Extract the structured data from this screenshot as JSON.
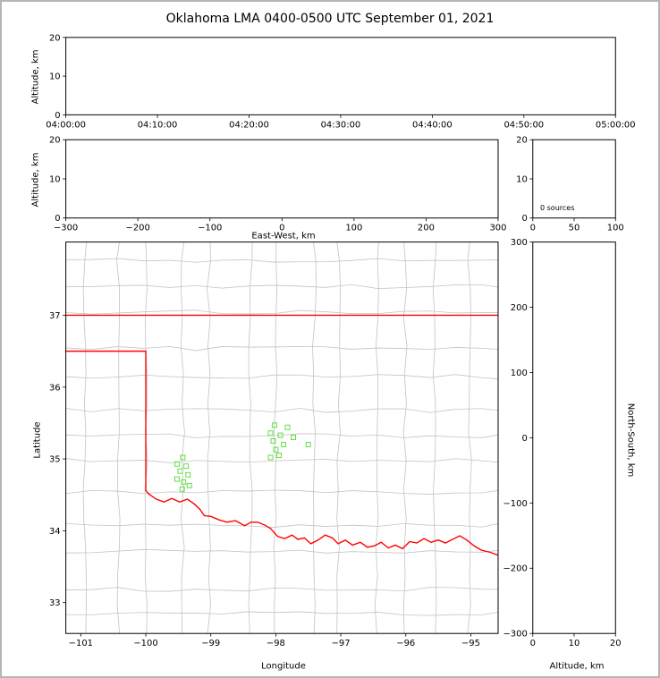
{
  "title": "Oklahoma LMA 0400-0500 UTC September 01, 2021",
  "colors": {
    "state_boundary": "#ff0000",
    "county_line": "#c3c3c3",
    "source_marker": "#62dd46",
    "axis": "#000000",
    "frame": "#b5b5b5",
    "background": "#ffffff"
  },
  "chart_data": [
    {
      "id": "time_height",
      "type": "scatter",
      "ylabel": "Altitude, km",
      "xlim": [
        0,
        3600
      ],
      "xtick_vals": [
        0,
        600,
        1200,
        1800,
        2400,
        3000,
        3600
      ],
      "xtick_labels": [
        "04:00:00",
        "04:10:00",
        "04:20:00",
        "04:30:00",
        "04:40:00",
        "04:50:00",
        "05:00:00"
      ],
      "ylim": [
        0,
        20
      ],
      "ytick_vals": [
        0,
        10,
        20
      ],
      "ytick_labels": [
        "0",
        "10",
        "20"
      ],
      "points": []
    },
    {
      "id": "ew_height",
      "type": "scatter",
      "xlabel": "East-West, km",
      "ylabel": "Altitude, km",
      "xlim": [
        -300,
        300
      ],
      "xtick_vals": [
        -300,
        -200,
        -100,
        0,
        100,
        200,
        300
      ],
      "xtick_labels": [
        "−300",
        "−200",
        "−100",
        "0",
        "100",
        "200",
        "300"
      ],
      "ylim": [
        0,
        20
      ],
      "ytick_vals": [
        0,
        10,
        20
      ],
      "ytick_labels": [
        "0",
        "10",
        "20"
      ],
      "points": []
    },
    {
      "id": "alt_histogram",
      "type": "histogram",
      "annotation": "0 sources",
      "xlim": [
        0,
        100
      ],
      "xtick_vals": [
        0,
        50,
        100
      ],
      "xtick_labels": [
        "0",
        "50",
        "100"
      ],
      "ylim": [
        0,
        20
      ],
      "ytick_vals": [
        0,
        10,
        20
      ],
      "ytick_labels": [
        "0",
        "10",
        "20"
      ],
      "points": []
    },
    {
      "id": "plan_map",
      "type": "scatter",
      "xlabel": "Longitude",
      "ylabel": "Latitude",
      "xlim": [
        -101.23,
        -94.58
      ],
      "xtick_vals": [
        -101,
        -100,
        -99,
        -98,
        -97,
        -96,
        -95
      ],
      "xtick_labels": [
        "−101",
        "−100",
        "−99",
        "−98",
        "−97",
        "−96",
        "−95"
      ],
      "ylim": [
        32.57,
        38.02
      ],
      "ytick_vals": [
        33,
        34,
        35,
        36,
        37
      ],
      "ytick_labels": [
        "33",
        "34",
        "35",
        "36",
        "37"
      ],
      "series": [
        {
          "name": "lma_sources",
          "marker": "open-square",
          "color": "#62dd46",
          "points": [
            [
              -99.43,
              35.02
            ],
            [
              -99.52,
              34.93
            ],
            [
              -99.38,
              34.9
            ],
            [
              -99.47,
              34.83
            ],
            [
              -99.35,
              34.78
            ],
            [
              -99.52,
              34.72
            ],
            [
              -99.42,
              34.68
            ],
            [
              -99.33,
              34.63
            ],
            [
              -99.44,
              34.58
            ],
            [
              -98.02,
              35.47
            ],
            [
              -97.82,
              35.44
            ],
            [
              -98.08,
              35.36
            ],
            [
              -97.93,
              35.33
            ],
            [
              -97.73,
              35.3
            ],
            [
              -98.04,
              35.25
            ],
            [
              -97.88,
              35.2
            ],
            [
              -98.0,
              35.13
            ],
            [
              -97.5,
              35.2
            ],
            [
              -97.95,
              35.05
            ],
            [
              -98.08,
              35.02
            ]
          ]
        }
      ],
      "state_boundary": {
        "color": "#ff0000",
        "lines": [
          [
            [
              -101.23,
              37.0
            ],
            [
              -94.58,
              37.0
            ]
          ],
          [
            [
              -101.23,
              36.5
            ],
            [
              -100.0,
              36.5
            ],
            [
              -100.0,
              34.56
            ],
            [
              -99.95,
              34.51
            ],
            [
              -99.84,
              34.44
            ],
            [
              -99.72,
              34.4
            ],
            [
              -99.6,
              34.45
            ],
            [
              -99.48,
              34.4
            ],
            [
              -99.36,
              34.44
            ],
            [
              -99.25,
              34.37
            ],
            [
              -99.17,
              34.3
            ],
            [
              -99.1,
              34.21
            ],
            [
              -99.0,
              34.2
            ],
            [
              -98.87,
              34.15
            ],
            [
              -98.75,
              34.12
            ],
            [
              -98.62,
              34.14
            ],
            [
              -98.48,
              34.07
            ],
            [
              -98.38,
              34.12
            ],
            [
              -98.28,
              34.12
            ],
            [
              -98.17,
              34.08
            ],
            [
              -98.08,
              34.03
            ],
            [
              -97.97,
              33.92
            ],
            [
              -97.86,
              33.89
            ],
            [
              -97.75,
              33.94
            ],
            [
              -97.66,
              33.88
            ],
            [
              -97.56,
              33.9
            ],
            [
              -97.46,
              33.82
            ],
            [
              -97.35,
              33.87
            ],
            [
              -97.24,
              33.94
            ],
            [
              -97.13,
              33.9
            ],
            [
              -97.04,
              33.82
            ],
            [
              -96.93,
              33.87
            ],
            [
              -96.82,
              33.8
            ],
            [
              -96.7,
              33.84
            ],
            [
              -96.59,
              33.77
            ],
            [
              -96.48,
              33.79
            ],
            [
              -96.38,
              33.84
            ],
            [
              -96.27,
              33.76
            ],
            [
              -96.16,
              33.8
            ],
            [
              -96.05,
              33.75
            ],
            [
              -95.94,
              33.85
            ],
            [
              -95.83,
              33.83
            ],
            [
              -95.72,
              33.89
            ],
            [
              -95.61,
              33.84
            ],
            [
              -95.5,
              33.87
            ],
            [
              -95.39,
              33.83
            ],
            [
              -95.28,
              33.88
            ],
            [
              -95.17,
              33.93
            ],
            [
              -95.06,
              33.87
            ],
            [
              -94.95,
              33.79
            ],
            [
              -94.84,
              33.73
            ],
            [
              -94.7,
              33.7
            ],
            [
              -94.58,
              33.66
            ]
          ]
        ]
      },
      "county_grid": {
        "color": "#c3c3c3",
        "lon_start": -101.0,
        "lon_end": -94.4,
        "lon_step": 0.5,
        "lat_start": 32.8,
        "lat_end": 37.9,
        "lat_step": 0.42,
        "jitter": 0.06
      }
    },
    {
      "id": "ns_alt",
      "type": "scatter",
      "xlabel": "Altitude, km",
      "ylabel": "North-South, km",
      "xlim": [
        0,
        20
      ],
      "xtick_vals": [
        0,
        10,
        20
      ],
      "xtick_labels": [
        "0",
        "10",
        "20"
      ],
      "ylim": [
        -300,
        300
      ],
      "ytick_vals": [
        -300,
        -200,
        -100,
        0,
        100,
        200,
        300
      ],
      "ytick_labels": [
        "−300",
        "−200",
        "−100",
        "0",
        "100",
        "200",
        "300"
      ],
      "points": []
    }
  ]
}
